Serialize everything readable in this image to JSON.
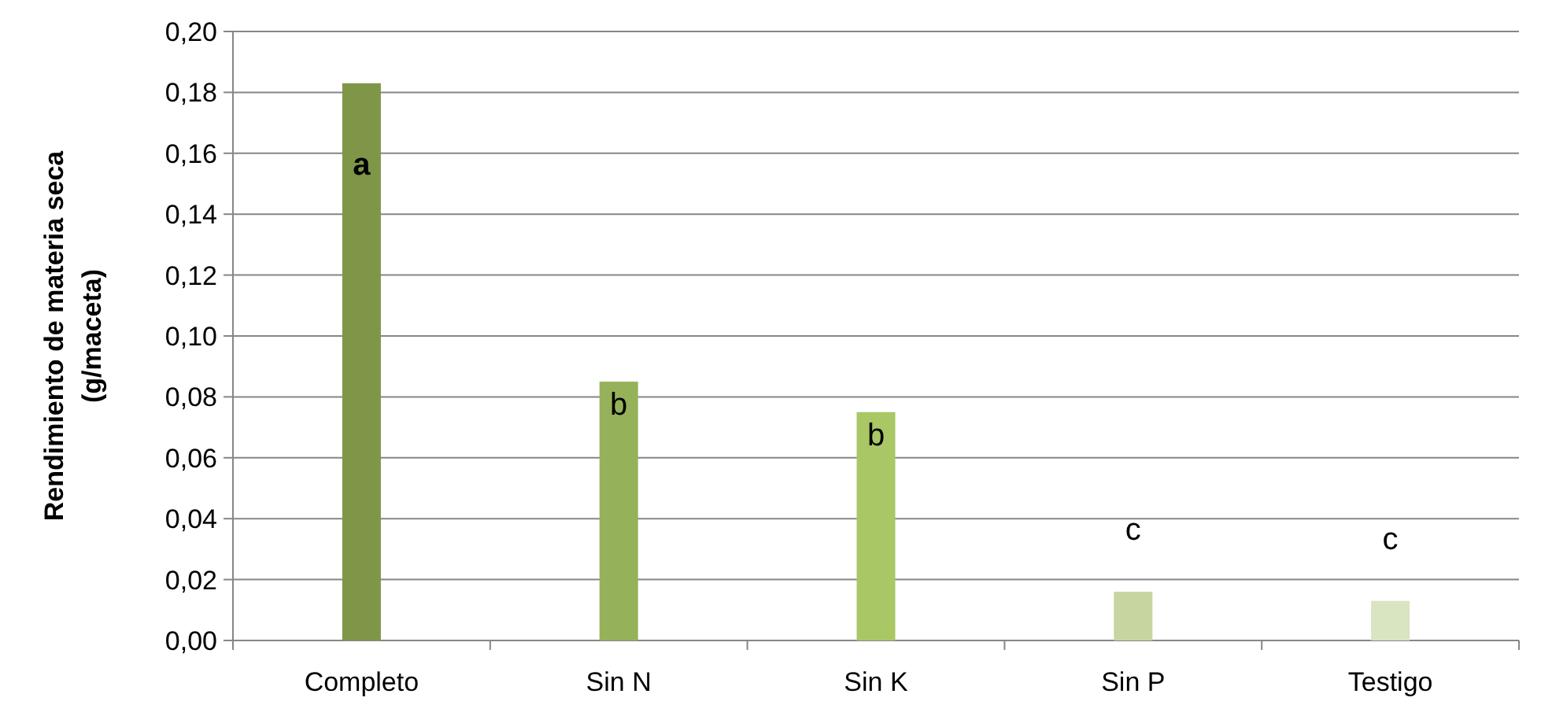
{
  "chart_data": {
    "type": "bar",
    "ylabel": "Rendimiento de materia seca\n(g/maceta)",
    "categories": [
      "Completo",
      "Sin N",
      "Sin K",
      "Sin P",
      "Testigo"
    ],
    "values": [
      0.183,
      0.085,
      0.075,
      0.016,
      0.013
    ],
    "colors": [
      "#7f9648",
      "#95b25a",
      "#a9c765",
      "#c7d6a0",
      "#d9e4c1"
    ],
    "ylim": [
      0,
      0.2
    ],
    "yticks": [
      {
        "value": 0,
        "label": "0,00"
      },
      {
        "value": 0.02,
        "label": "0,02"
      },
      {
        "value": 0.04,
        "label": "0,04"
      },
      {
        "value": 0.06,
        "label": "0,06"
      },
      {
        "value": 0.08,
        "label": "0,08"
      },
      {
        "value": 0.1,
        "label": "0,10"
      },
      {
        "value": 0.12,
        "label": "0,12"
      },
      {
        "value": 0.14,
        "label": "0,14"
      },
      {
        "value": 0.16,
        "label": "0,16"
      },
      {
        "value": 0.18,
        "label": "0,18"
      },
      {
        "value": 0.2,
        "label": "0,20"
      }
    ],
    "grid": "y",
    "annotations": [
      "a",
      "b",
      "b",
      "c",
      "c"
    ]
  }
}
